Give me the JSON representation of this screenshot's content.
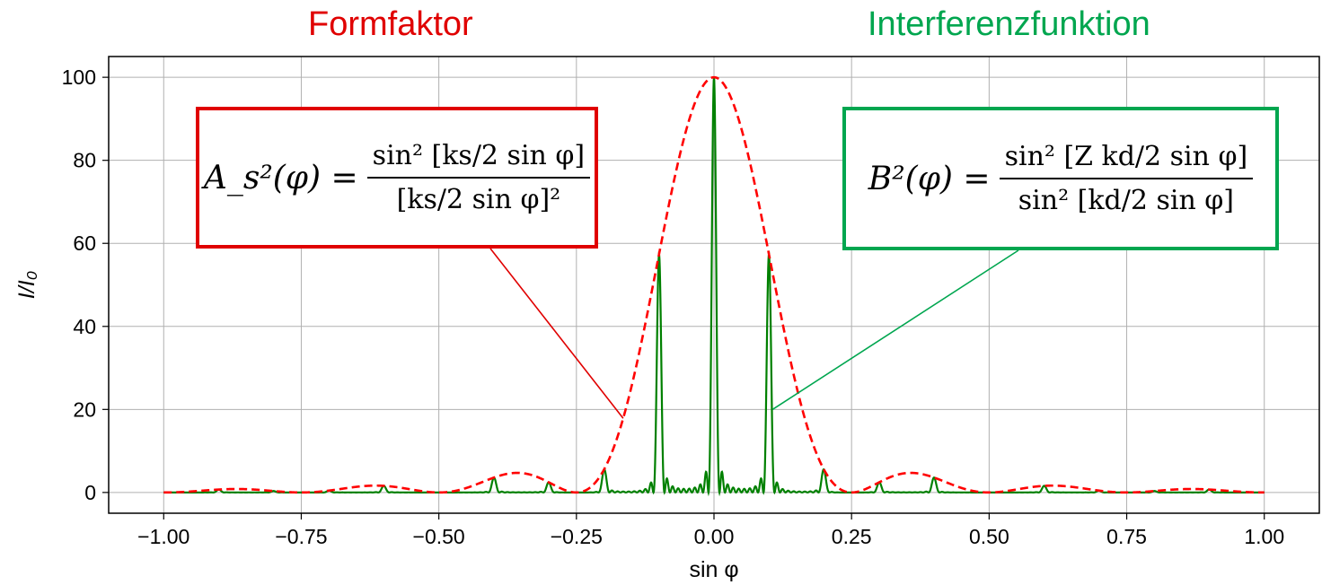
{
  "headers": {
    "left": "Formfaktor",
    "right": "Interferenzfunktion",
    "left_color": "#e00000",
    "right_color": "#00a64f"
  },
  "formulas": {
    "form_factor": {
      "lhs": "A_s²(φ) =",
      "numerator": "sin² [ks/2 sin φ]",
      "denominator": "[ks/2 sin φ]²",
      "border_color": "#e00000"
    },
    "interference": {
      "lhs": "B²(φ) =",
      "numerator": "sin² [Z kd/2 sin φ]",
      "denominator": "sin² [kd/2 sin φ]",
      "border_color": "#00a64f"
    }
  },
  "chart_data": {
    "type": "line",
    "xlabel": "sin φ",
    "ylabel": "I/I₀",
    "xlim": [
      -1.1,
      1.1
    ],
    "ylim": [
      -5,
      105
    ],
    "xticks": [
      "−1.00",
      "−0.75",
      "−0.50",
      "−0.25",
      "0.00",
      "0.25",
      "0.50",
      "0.75",
      "1.00"
    ],
    "yticks": [
      "0",
      "20",
      "40",
      "60",
      "80",
      "100"
    ],
    "grid": true,
    "model": {
      "Z": 10,
      "ks_half_over_pi": 4,
      "kd_half_over_pi": 10
    },
    "series": [
      {
        "color": "#ff0000",
        "style": "dashed",
        "x": [
          -1.0,
          -0.9,
          -0.875,
          -0.8,
          -0.75,
          -0.7,
          -0.625,
          -0.6,
          -0.5,
          -0.4,
          -0.375,
          -0.3,
          -0.25,
          -0.2,
          -0.15,
          -0.1,
          -0.05,
          0.0,
          0.05,
          0.1,
          0.15,
          0.2,
          0.25,
          0.3,
          0.375,
          0.4,
          0.5,
          0.6,
          0.625,
          0.7,
          0.75,
          0.8,
          0.875,
          0.9,
          1.0
        ],
        "y": [
          0.0,
          0.6,
          0.9,
          0.6,
          0.0,
          0.8,
          1.7,
          1.5,
          0.0,
          3.4,
          5.0,
          3.4,
          0.0,
          5.7,
          23.0,
          57.3,
          87.5,
          100.0,
          87.5,
          57.3,
          23.0,
          5.7,
          0.0,
          3.4,
          5.0,
          3.4,
          0.0,
          1.5,
          1.7,
          0.8,
          0.0,
          0.6,
          0.9,
          0.6,
          0.0
        ]
      },
      {
        "color": "#008000",
        "style": "solid",
        "x": [
          -1.0,
          -0.9,
          -0.8,
          -0.7,
          -0.6,
          -0.5,
          -0.4,
          -0.3,
          -0.2,
          -0.1,
          0.0,
          0.1,
          0.2,
          0.3,
          0.4,
          0.5,
          0.6,
          0.7,
          0.8,
          0.9,
          1.0
        ],
        "y": [
          0.0,
          0.6,
          0.0,
          0.8,
          1.5,
          0.0,
          3.4,
          3.4,
          5.7,
          57.3,
          100.0,
          57.3,
          5.7,
          3.4,
          3.4,
          0.0,
          1.5,
          0.8,
          0.0,
          0.6,
          0.0
        ]
      }
    ]
  }
}
